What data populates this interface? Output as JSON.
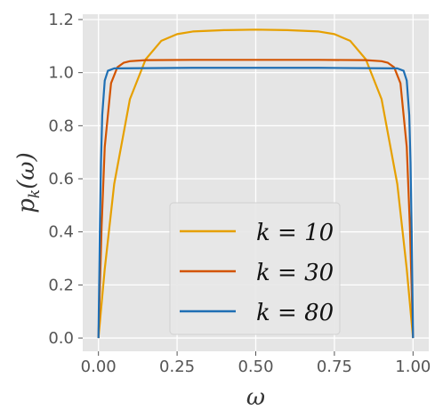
{
  "chart_data": {
    "type": "line",
    "title": "",
    "xlabel": "ω",
    "ylabel": "p_k(ω)",
    "xlim": [
      -0.05,
      1.05
    ],
    "ylim": [
      -0.05,
      1.22
    ],
    "xticks": [
      0.0,
      0.25,
      0.5,
      0.75,
      1.0
    ],
    "xtick_labels": [
      "0.00",
      "0.25",
      "0.50",
      "0.75",
      "1.00"
    ],
    "yticks": [
      0.0,
      0.2,
      0.4,
      0.6,
      0.8,
      1.0,
      1.2
    ],
    "ytick_labels": [
      "0.0",
      "0.2",
      "0.4",
      "0.6",
      "0.8",
      "1.0",
      "1.2"
    ],
    "grid": true,
    "legend_placement": "lower-center",
    "series": [
      {
        "name": "k = 10",
        "color": "#E6A000",
        "x": [
          0.0,
          0.02,
          0.05,
          0.1,
          0.15,
          0.2,
          0.25,
          0.3,
          0.4,
          0.5,
          0.6,
          0.7,
          0.75,
          0.8,
          0.85,
          0.9,
          0.95,
          0.98,
          1.0
        ],
        "y": [
          0.0,
          0.26,
          0.58,
          0.9,
          1.05,
          1.12,
          1.145,
          1.155,
          1.16,
          1.162,
          1.16,
          1.155,
          1.145,
          1.12,
          1.05,
          0.9,
          0.58,
          0.26,
          0.0
        ]
      },
      {
        "name": "k = 30",
        "color": "#D35400",
        "x": [
          0.0,
          0.01,
          0.02,
          0.04,
          0.06,
          0.08,
          0.1,
          0.15,
          0.3,
          0.5,
          0.7,
          0.85,
          0.9,
          0.92,
          0.94,
          0.96,
          0.98,
          0.99,
          1.0
        ],
        "y": [
          0.0,
          0.42,
          0.72,
          0.96,
          1.02,
          1.037,
          1.043,
          1.047,
          1.048,
          1.048,
          1.048,
          1.047,
          1.043,
          1.037,
          1.02,
          0.96,
          0.72,
          0.42,
          0.0
        ]
      },
      {
        "name": "k = 80",
        "color": "#1F6FB4",
        "x": [
          0.0,
          0.004,
          0.008,
          0.012,
          0.02,
          0.03,
          0.05,
          0.3,
          0.5,
          0.7,
          0.95,
          0.97,
          0.98,
          0.988,
          0.992,
          0.996,
          1.0
        ],
        "y": [
          0.0,
          0.38,
          0.66,
          0.84,
          0.97,
          1.007,
          1.016,
          1.018,
          1.018,
          1.018,
          1.016,
          1.007,
          0.97,
          0.84,
          0.66,
          0.38,
          0.0
        ]
      }
    ]
  }
}
